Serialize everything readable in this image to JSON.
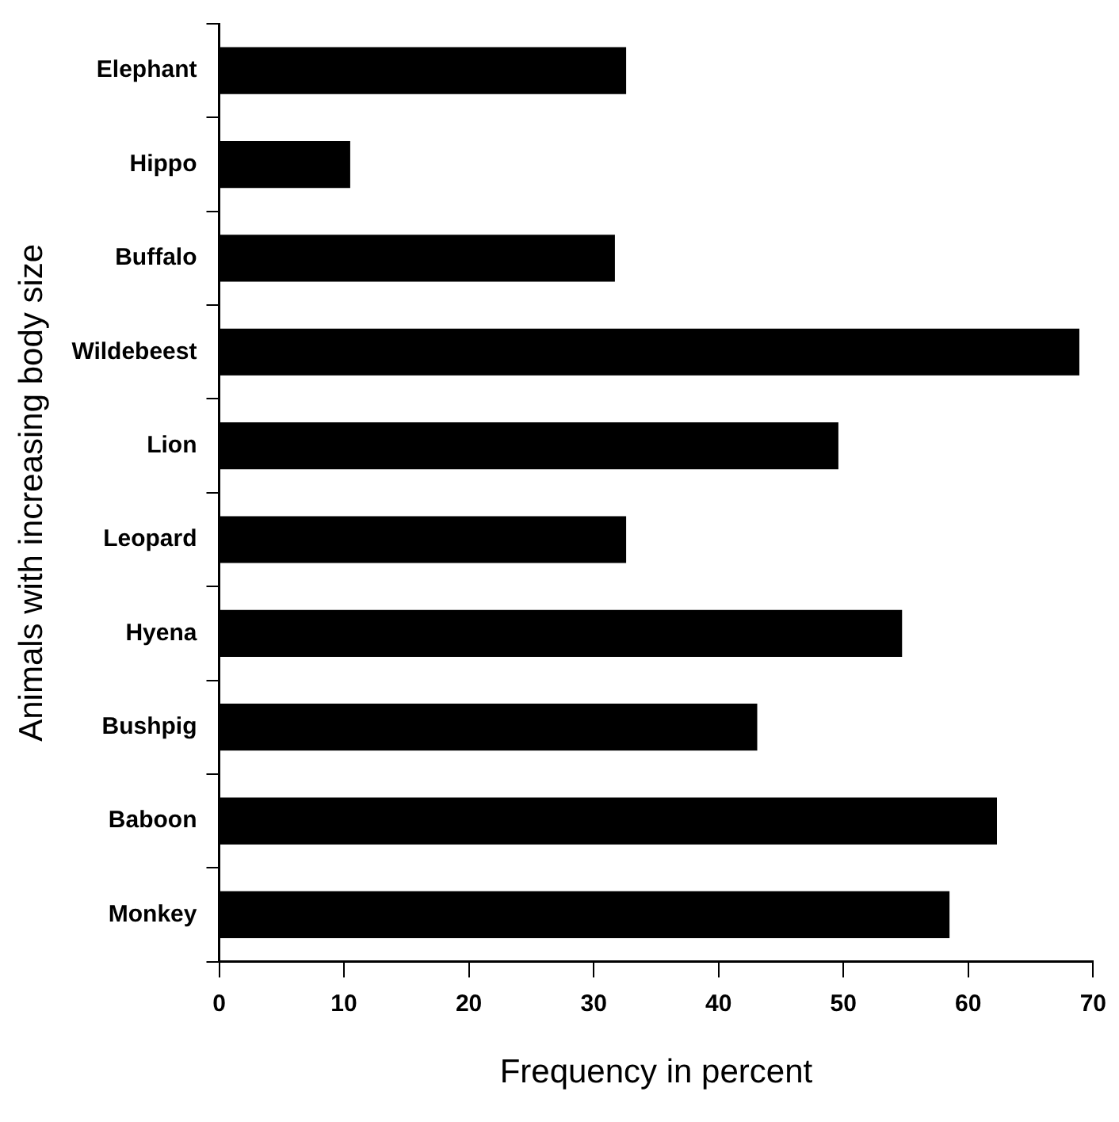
{
  "chart_data": {
    "type": "bar",
    "orientation": "horizontal",
    "xlabel": "Frequency in percent",
    "ylabel": "Animals with increasing body size",
    "categories": [
      "Elephant",
      "Hippo",
      "Buffalo",
      "Wildebeest",
      "Lion",
      "Leopard",
      "Hyena",
      "Bushpig",
      "Baboon",
      "Monkey"
    ],
    "values": [
      32.6,
      10.5,
      31.7,
      68.9,
      49.6,
      32.6,
      54.7,
      43.1,
      62.3,
      58.5
    ],
    "color": "#000000",
    "xlim": [
      0,
      70
    ],
    "xticks": [
      0,
      10,
      20,
      30,
      40,
      50,
      60,
      70
    ],
    "grid": false,
    "legend": false
  }
}
